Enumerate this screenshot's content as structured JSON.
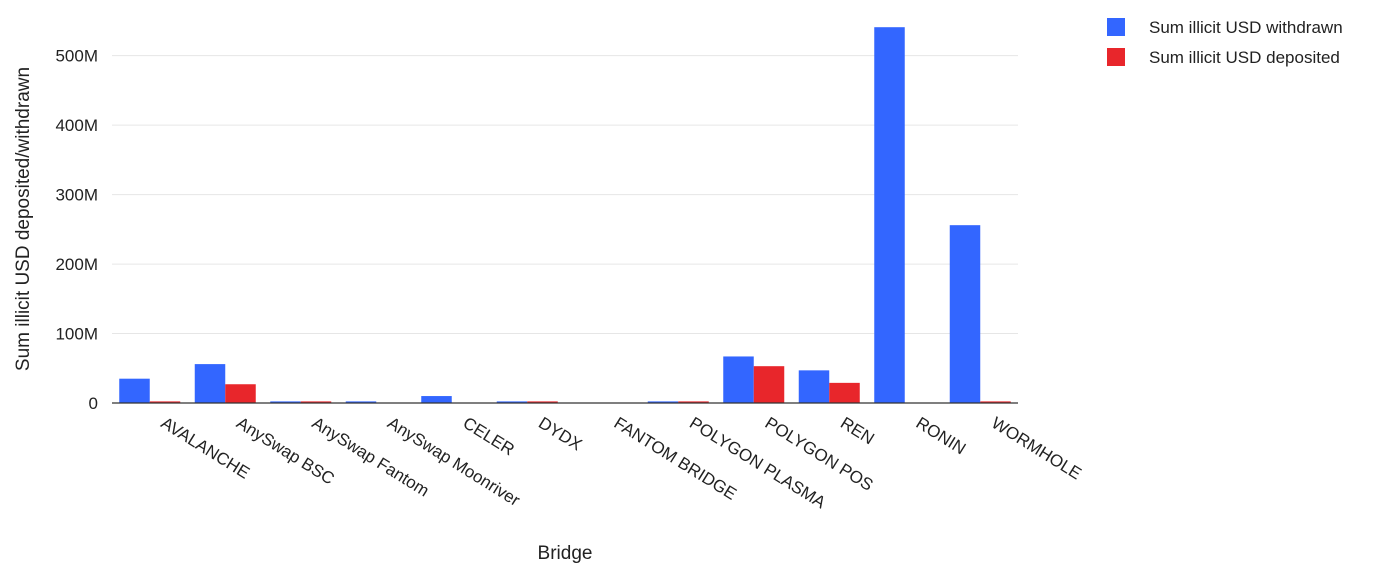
{
  "chart_data": {
    "type": "bar",
    "title": "",
    "xlabel": "Bridge",
    "ylabel": "Sum illicit USD deposited/withdrawn",
    "ylim": [
      0,
      560000000
    ],
    "yticks": [
      0,
      100000000,
      200000000,
      300000000,
      400000000,
      500000000
    ],
    "ytick_labels": [
      "0",
      "100M",
      "200M",
      "300M",
      "400M",
      "500M"
    ],
    "grid": true,
    "legend_position": "top-right",
    "categories": [
      "AVALANCHE",
      "AnySwap BSC",
      "AnySwap Fantom",
      "AnySwap Moonriver",
      "CELER",
      "DYDX",
      "FANTOM BRIDGE",
      "POLYGON PLASMA",
      "POLYGON POS",
      "REN",
      "RONIN",
      "WORMHOLE"
    ],
    "series": [
      {
        "name": "Sum illicit USD withdrawn",
        "color": "#3366ff",
        "values": [
          35000000,
          56000000,
          1500000,
          1500000,
          10000000,
          1500000,
          0,
          1500000,
          67000000,
          47000000,
          541000000,
          256000000
        ]
      },
      {
        "name": "Sum illicit USD deposited",
        "color": "#e8262b",
        "values": [
          1500000,
          27000000,
          1500000,
          0,
          0,
          1500000,
          0,
          1500000,
          53000000,
          29000000,
          0,
          1500000
        ]
      }
    ]
  }
}
